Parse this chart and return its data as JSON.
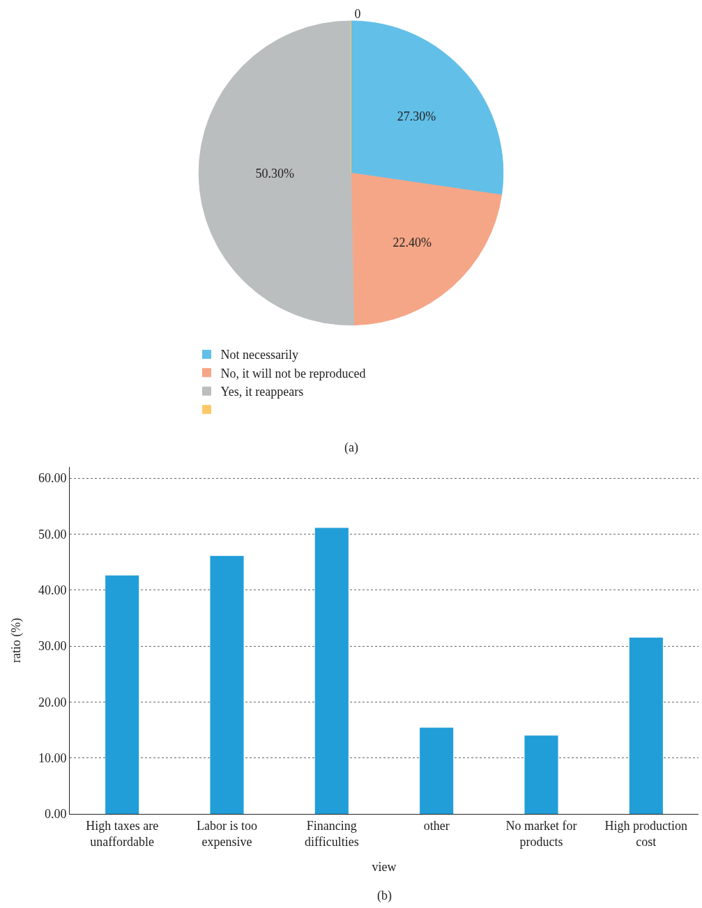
{
  "chart_data": [
    {
      "type": "pie",
      "categories": [
        "Not necessarily",
        "No, it will not be reproduced",
        "Yes, it reappears",
        null
      ],
      "values": [
        27.3,
        22.4,
        50.3,
        0
      ],
      "colors": [
        "#62bfe8",
        "#f5a686",
        "#bbbebf",
        "#fcc96a"
      ],
      "value_labels": [
        "27.30%",
        "22.40%",
        "50.30%",
        "0"
      ],
      "legend": "bottom",
      "annotations": [
        "(a)"
      ]
    },
    {
      "type": "bar",
      "categories": [
        "High taxes are unaffordable",
        "Labor is too expensive",
        "Financing difficulties",
        "other",
        "No market for products",
        "High production cost"
      ],
      "values": [
        42.6,
        46.1,
        51.1,
        15.4,
        14.0,
        31.5
      ],
      "color": "#219ed8",
      "ylim": [
        0,
        62
      ],
      "yticks": [
        {
          "value": 0,
          "label": "0.00"
        },
        {
          "value": 10,
          "label": "10.00"
        },
        {
          "value": 20,
          "label": "20.00"
        },
        {
          "value": 30,
          "label": "30.00"
        },
        {
          "value": 40,
          "label": "40.00"
        },
        {
          "value": 50,
          "label": "50.00"
        },
        {
          "value": 60,
          "label": "60.00"
        }
      ],
      "grid": "y",
      "xlabel": "view",
      "ylabel": "ratio (%)",
      "annotations": [
        "(b)"
      ]
    }
  ]
}
